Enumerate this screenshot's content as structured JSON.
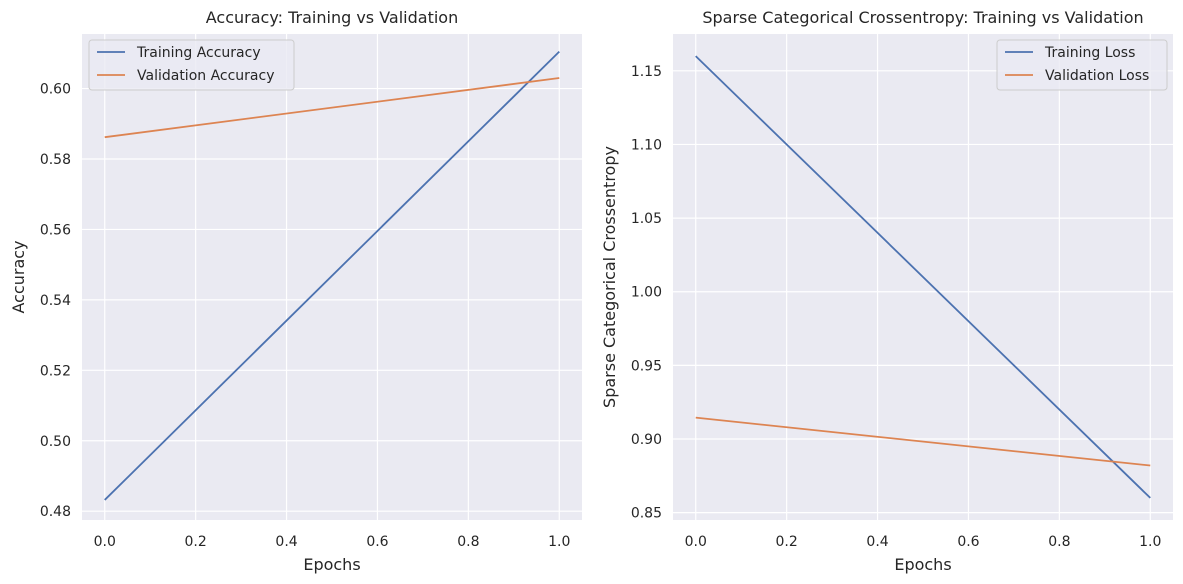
{
  "colors": {
    "axes_bg": "#EAEAF2",
    "grid": "#FFFFFF",
    "series_1": "#4C72B0",
    "series_2": "#DD8452",
    "text": "#262626"
  },
  "chart_data": [
    {
      "type": "line",
      "title": "Accuracy: Training vs Validation",
      "xlabel": "Epochs",
      "ylabel": "Accuracy",
      "xlim": [
        -0.05,
        1.05
      ],
      "ylim": [
        0.4775,
        0.6155
      ],
      "xticks": [
        0.0,
        0.2,
        0.4,
        0.6,
        0.8,
        1.0
      ],
      "xtick_labels": [
        "0.0",
        "0.2",
        "0.4",
        "0.6",
        "0.8",
        "1.0"
      ],
      "yticks": [
        0.48,
        0.5,
        0.52,
        0.54,
        0.56,
        0.58,
        0.6
      ],
      "ytick_labels": [
        "0.48",
        "0.50",
        "0.52",
        "0.54",
        "0.56",
        "0.58",
        "0.60"
      ],
      "grid": true,
      "legend_position": "top-left",
      "x": [
        0,
        1
      ],
      "series": [
        {
          "name": "Training Accuracy",
          "values": [
            0.4832,
            0.6105
          ],
          "color": "#4C72B0"
        },
        {
          "name": "Validation Accuracy",
          "values": [
            0.5862,
            0.603
          ],
          "color": "#DD8452"
        }
      ]
    },
    {
      "type": "line",
      "title": "Sparse Categorical Crossentropy: Training vs Validation",
      "xlabel": "Epochs",
      "ylabel": "Sparse Categorical Crossentropy",
      "xlim": [
        -0.05,
        1.05
      ],
      "ylim": [
        0.845,
        1.175
      ],
      "xticks": [
        0.0,
        0.2,
        0.4,
        0.6,
        0.8,
        1.0
      ],
      "xtick_labels": [
        "0.0",
        "0.2",
        "0.4",
        "0.6",
        "0.8",
        "1.0"
      ],
      "yticks": [
        0.85,
        0.9,
        0.95,
        1.0,
        1.05,
        1.1,
        1.15
      ],
      "ytick_labels": [
        "0.85",
        "0.90",
        "0.95",
        "1.00",
        "1.05",
        "1.10",
        "1.15"
      ],
      "grid": true,
      "legend_position": "top-right",
      "x": [
        0,
        1
      ],
      "series": [
        {
          "name": "Training Loss",
          "values": [
            1.16,
            0.86
          ],
          "color": "#4C72B0"
        },
        {
          "name": "Validation Loss",
          "values": [
            0.9145,
            0.882
          ],
          "color": "#DD8452"
        }
      ]
    }
  ]
}
